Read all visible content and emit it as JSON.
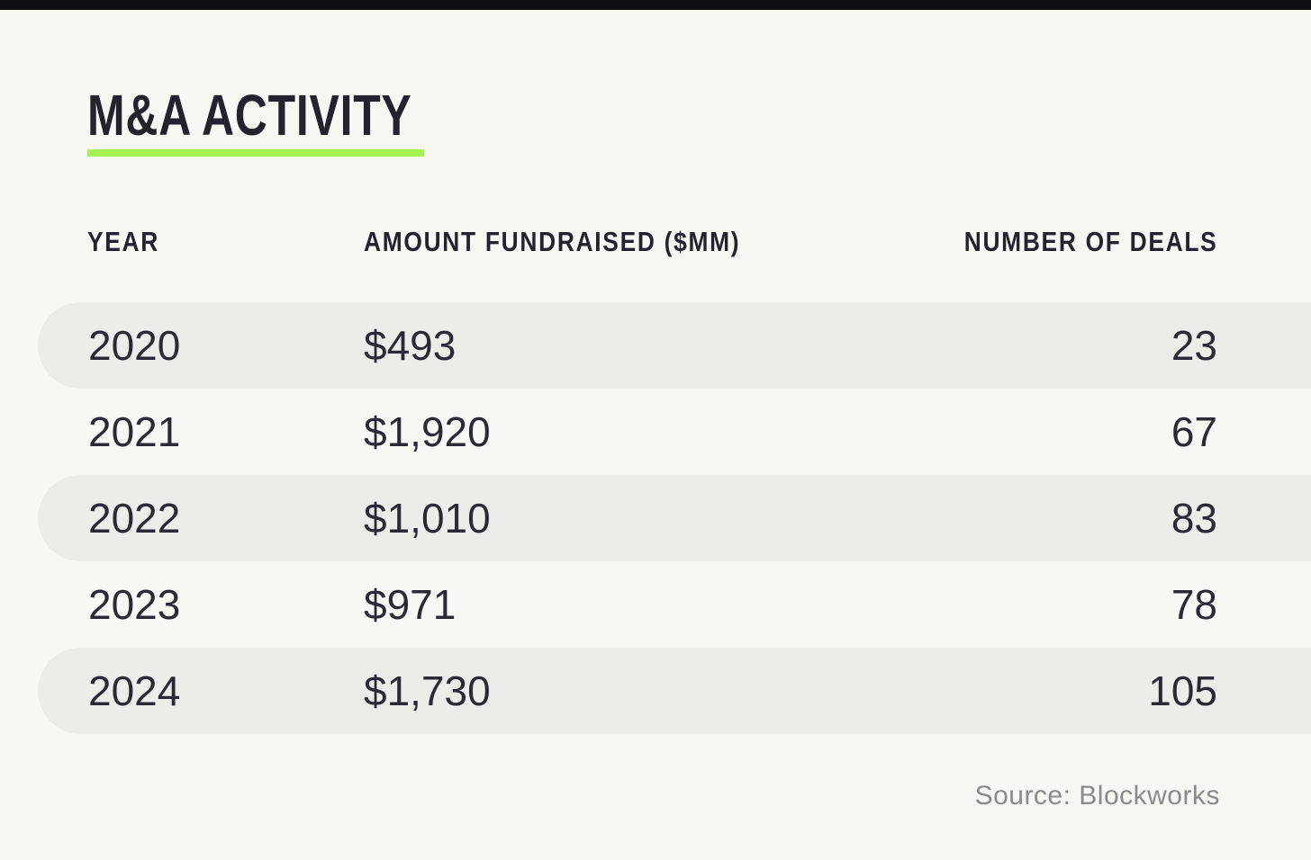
{
  "page": {
    "background_color": "#f8f7f4",
    "top_bar_color": "#0f0e13"
  },
  "title": {
    "text": "M&A ACTIVITY",
    "underline_color": "#a5f353",
    "text_color": "#24222c"
  },
  "table": {
    "headers": {
      "year": "YEAR",
      "amount": "AMOUNT FUNDRAISED ($MM)",
      "deals": "NUMBER OF DEALS"
    },
    "rows": [
      {
        "year": "2020",
        "amount": "$493",
        "deals": "23"
      },
      {
        "year": "2021",
        "amount": "$1,920",
        "deals": "67"
      },
      {
        "year": "2022",
        "amount": "$1,010",
        "deals": "83"
      },
      {
        "year": "2023",
        "amount": "$971",
        "deals": "78"
      },
      {
        "year": "2024",
        "amount": "$1,730",
        "deals": "105"
      }
    ],
    "alt_row_color": "#eeece9",
    "text_color": "#2b2935"
  },
  "source": {
    "text": "Source: Blockworks",
    "color": "#8b898b"
  },
  "chart_data": {
    "type": "table",
    "title": "M&A Activity",
    "columns": [
      "Year",
      "Amount Fundraised ($MM)",
      "Number of Deals"
    ],
    "rows": [
      [
        2020,
        493,
        23
      ],
      [
        2021,
        1920,
        67
      ],
      [
        2022,
        1010,
        83
      ],
      [
        2023,
        971,
        78
      ],
      [
        2024,
        1730,
        105
      ]
    ],
    "source": "Blockworks",
    "layout_hints": {
      "alternating_row_shading": [
        0,
        2,
        4
      ],
      "deals_column_alignment": "right",
      "title_underline": "neon-green"
    }
  }
}
